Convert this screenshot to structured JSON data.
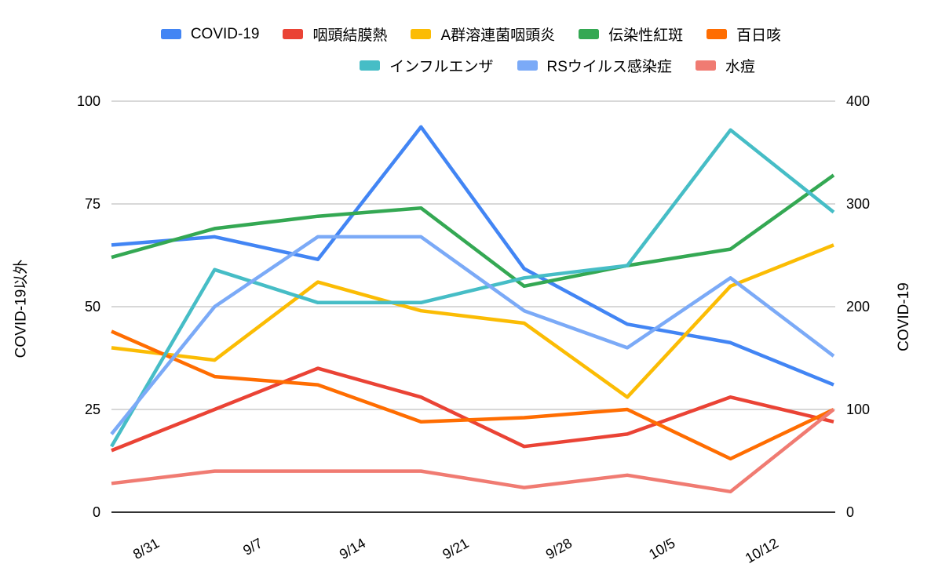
{
  "chart_data": {
    "type": "line",
    "title": "",
    "left_axis": {
      "title": "COVID-19以外",
      "ticks": [
        0,
        25,
        50,
        75,
        100
      ],
      "range": [
        0,
        100
      ]
    },
    "right_axis": {
      "title": "COVID-19",
      "ticks": [
        0,
        100,
        200,
        300,
        400
      ],
      "range": [
        0,
        400
      ]
    },
    "x_ticks": [
      "8/31",
      "9/7",
      "9/14",
      "9/21",
      "9/28",
      "10/5",
      "10/12"
    ],
    "series": [
      {
        "name": "COVID-19",
        "color": "#4285F4",
        "axis": "right",
        "values": [
          260,
          268,
          246,
          375,
          237,
          183,
          165,
          124
        ]
      },
      {
        "name": "咽頭結膜熱",
        "color": "#EA4335",
        "axis": "left",
        "values": [
          15,
          25,
          35,
          28,
          16,
          19,
          28,
          22
        ]
      },
      {
        "name": "A群溶連菌咽頭炎",
        "color": "#FBBC04",
        "axis": "left",
        "values": [
          40,
          37,
          56,
          49,
          46,
          28,
          55,
          65
        ]
      },
      {
        "name": "伝染性紅斑",
        "color": "#34A853",
        "axis": "left",
        "values": [
          62,
          69,
          72,
          74,
          55,
          60,
          64,
          82
        ]
      },
      {
        "name": "百日咳",
        "color": "#FF6D01",
        "axis": "left",
        "values": [
          44,
          33,
          31,
          22,
          23,
          25,
          13,
          25
        ]
      },
      {
        "name": "インフルエンザ",
        "color": "#46BDC6",
        "axis": "left",
        "values": [
          16,
          59,
          51,
          51,
          57,
          60,
          93,
          73
        ]
      },
      {
        "name": "RSウイルス感染症",
        "color": "#7BAAF7",
        "axis": "left",
        "values": [
          19,
          50,
          67,
          67,
          49,
          40,
          57,
          38
        ]
      },
      {
        "name": "水痘",
        "color": "#F07B72",
        "axis": "left",
        "values": [
          7,
          10,
          10,
          10,
          6,
          9,
          5,
          25
        ]
      }
    ],
    "layout": {
      "legend_position": "top",
      "legend_rows": [
        [
          0,
          1,
          2,
          3,
          4
        ],
        [
          5,
          6,
          7
        ]
      ],
      "grid": "horizontal-only",
      "grid_color": "#cccccc",
      "baseline_color": "#333333",
      "tick_label_color": "#000000",
      "x_axis_days_span": 49,
      "point_interval_days": 7,
      "first_tick_day_offset": 3,
      "x_label_angle_deg": -30
    }
  }
}
